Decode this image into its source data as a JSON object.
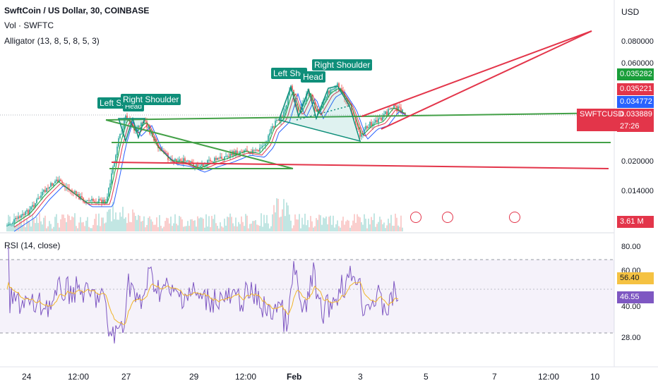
{
  "header": {
    "title": "SwftCoin / US Dollar, 30, COINBASE",
    "volume_label": "Vol · SWFTC",
    "alligator_label": "Alligator (13, 8, 5, 8, 5, 3)"
  },
  "rsi": {
    "title": "RSI (14, close)",
    "axis": [
      "80.00",
      "60.00",
      "40.00",
      "28.00"
    ],
    "value_yellow": "56.40",
    "value_purple": "46.55"
  },
  "price_axis": {
    "currency": "USD",
    "labels": [
      "0.080000",
      "0.060000",
      "0.020000",
      "0.014000"
    ],
    "tags": [
      {
        "text": "0.035282",
        "color": "#1a9e3a"
      },
      {
        "text": "0.035221",
        "color": "#e3354a"
      },
      {
        "text": "0.034772",
        "color": "#2962ff"
      },
      {
        "text": "0.033889",
        "color": "#e3354a"
      }
    ],
    "symbol": "SWFTCUSD",
    "countdown": "27:26",
    "volume_tag": "3.61 M"
  },
  "patterns": {
    "left1": "Left Sh",
    "head1": "Head",
    "right1": "Right Shoulder",
    "left2": "Left Sho",
    "head2": "Head",
    "right2": "Right Shoulder"
  },
  "time_axis": [
    "24",
    "12:00",
    "27",
    "29",
    "12:00",
    "Feb",
    "3",
    "5",
    "7",
    "12:00",
    "10"
  ],
  "event_icons": [
    "us-flag-icon",
    "us-flag-icon",
    "us-flag-icon"
  ],
  "colors": {
    "up": "#26a69a",
    "down": "#ef5350",
    "green_line": "#43a047",
    "red_line": "#e3354a",
    "rsi": "#7e57c2",
    "rsi_ma": "#f0b429"
  }
}
